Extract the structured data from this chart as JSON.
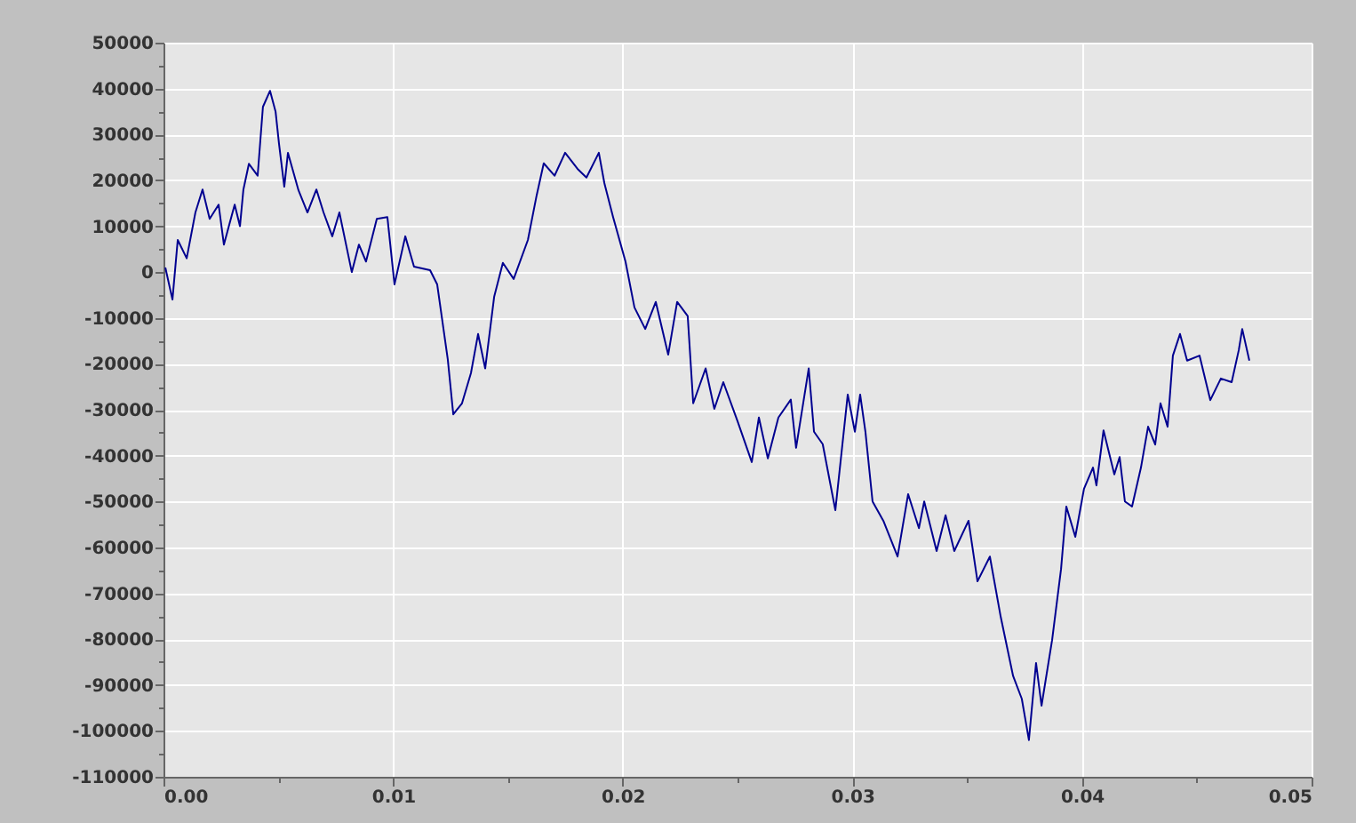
{
  "chart_data": {
    "type": "line",
    "x": [
      8e-05,
      0.00039,
      0.00062,
      0.00101,
      0.00139,
      0.0017,
      0.00201,
      0.0024,
      0.00263,
      0.0031,
      0.00333,
      0.00348,
      0.00372,
      0.0041,
      0.00433,
      0.00464,
      0.00488,
      0.00503,
      0.00526,
      0.00542,
      0.00588,
      0.00627,
      0.00666,
      0.00697,
      0.00735,
      0.00766,
      0.0082,
      0.00851,
      0.00882,
      0.00929,
      0.00975,
      0.01006,
      0.01053,
      0.01091,
      0.01161,
      0.01192,
      0.01238,
      0.01262,
      0.013,
      0.01339,
      0.0137,
      0.01401,
      0.0144,
      0.01478,
      0.01525,
      0.01587,
      0.01625,
      0.01656,
      0.01703,
      0.01749,
      0.01803,
      0.01842,
      0.01896,
      0.0192,
      0.01958,
      0.02012,
      0.02051,
      0.02098,
      0.02144,
      0.02198,
      0.02237,
      0.02283,
      0.02307,
      0.02361,
      0.02399,
      0.02438,
      0.025,
      0.02562,
      0.02593,
      0.02632,
      0.02678,
      0.02732,
      0.02755,
      0.0281,
      0.02833,
      0.02871,
      0.02926,
      0.0298,
      0.03011,
      0.03034,
      0.03057,
      0.03088,
      0.03135,
      0.03197,
      0.03243,
      0.0329,
      0.03313,
      0.03367,
      0.03406,
      0.03444,
      0.03506,
      0.03545,
      0.03599,
      0.03646,
      0.037,
      0.03738,
      0.03769,
      0.038,
      0.03824,
      0.0387,
      0.03909,
      0.03932,
      0.03971,
      0.04009,
      0.04048,
      0.04063,
      0.04094,
      0.04141,
      0.04164,
      0.04187,
      0.04218,
      0.04257,
      0.04288,
      0.04319,
      0.04342,
      0.04373,
      0.04396,
      0.04427,
      0.04458,
      0.04512,
      0.04559,
      0.04605,
      0.04652,
      0.04683,
      0.04698,
      0.04729
    ],
    "series": [
      {
        "color": "#000090",
        "values": [
          1000,
          -6000,
          7000,
          3000,
          13000,
          18000,
          11600,
          14700,
          6000,
          14700,
          10000,
          18000,
          23600,
          21000,
          36000,
          39500,
          35000,
          28000,
          18600,
          26000,
          17800,
          13000,
          18000,
          13000,
          7800,
          13000,
          0,
          6000,
          2300,
          11600,
          12000,
          -2700,
          7800,
          1200,
          400,
          -2700,
          -19000,
          -31000,
          -28600,
          -22000,
          -13500,
          -21000,
          -5400,
          2000,
          -1500,
          7000,
          16700,
          23700,
          21000,
          26000,
          22500,
          20600,
          26000,
          19400,
          12000,
          2300,
          -7700,
          -12400,
          -6500,
          -18000,
          -6500,
          -9600,
          -28600,
          -21000,
          -29800,
          -24000,
          -32500,
          -41400,
          -31700,
          -40600,
          -31700,
          -27800,
          -38300,
          -21000,
          -34800,
          -37500,
          -51900,
          -26700,
          -34800,
          -26700,
          -34800,
          -50000,
          -54200,
          -62000,
          -48400,
          -55800,
          -50000,
          -60800,
          -53000,
          -60800,
          -54200,
          -67400,
          -62000,
          -75100,
          -88000,
          -93000,
          -102000,
          -85200,
          -94500,
          -80200,
          -64700,
          -51100,
          -57700,
          -47200,
          -42600,
          -46500,
          -34500,
          -44100,
          -40300,
          -50000,
          -51100,
          -42600,
          -33700,
          -37600,
          -28600,
          -33700,
          -18200,
          -13500,
          -19300,
          -18200,
          -27900,
          -23200,
          -24000,
          -17000,
          -12400,
          -19300
        ]
      }
    ],
    "xlim": [
      0,
      0.05
    ],
    "xticks": [
      {
        "value": 0,
        "label": "0.00"
      },
      {
        "value": 0.005,
        "label": null
      },
      {
        "value": 0.01,
        "label": "0.01"
      },
      {
        "value": 0.015,
        "label": null
      },
      {
        "value": 0.02,
        "label": "0.02"
      },
      {
        "value": 0.025,
        "label": null
      },
      {
        "value": 0.03,
        "label": "0.03"
      },
      {
        "value": 0.035,
        "label": null
      },
      {
        "value": 0.04,
        "label": "0.04"
      },
      {
        "value": 0.045,
        "label": null
      },
      {
        "value": 0.05,
        "label": "0.05"
      }
    ],
    "ylim": [
      -110000,
      50000
    ],
    "yticks": [
      -110000,
      {
        "value": -105000,
        "label": null
      },
      -100000,
      {
        "value": -95000,
        "label": null
      },
      -90000,
      {
        "value": -85000,
        "label": null
      },
      -80000,
      {
        "value": -75000,
        "label": null
      },
      -70000,
      {
        "value": -65000,
        "label": null
      },
      -60000,
      {
        "value": -55000,
        "label": null
      },
      -50000,
      {
        "value": -45000,
        "label": null
      },
      -40000,
      {
        "value": -35000,
        "label": null
      },
      -30000,
      {
        "value": -25000,
        "label": null
      },
      -20000,
      {
        "value": -15000,
        "label": null
      },
      -10000,
      {
        "value": -5000,
        "label": null
      },
      0,
      {
        "value": 5000,
        "label": null
      },
      10000,
      {
        "value": 15000,
        "label": null
      },
      20000,
      {
        "value": 25000,
        "label": null
      },
      30000,
      {
        "value": 35000,
        "label": null
      },
      40000,
      {
        "value": 45000,
        "label": null
      },
      50000
    ],
    "grid": true,
    "line_style": "solid"
  }
}
